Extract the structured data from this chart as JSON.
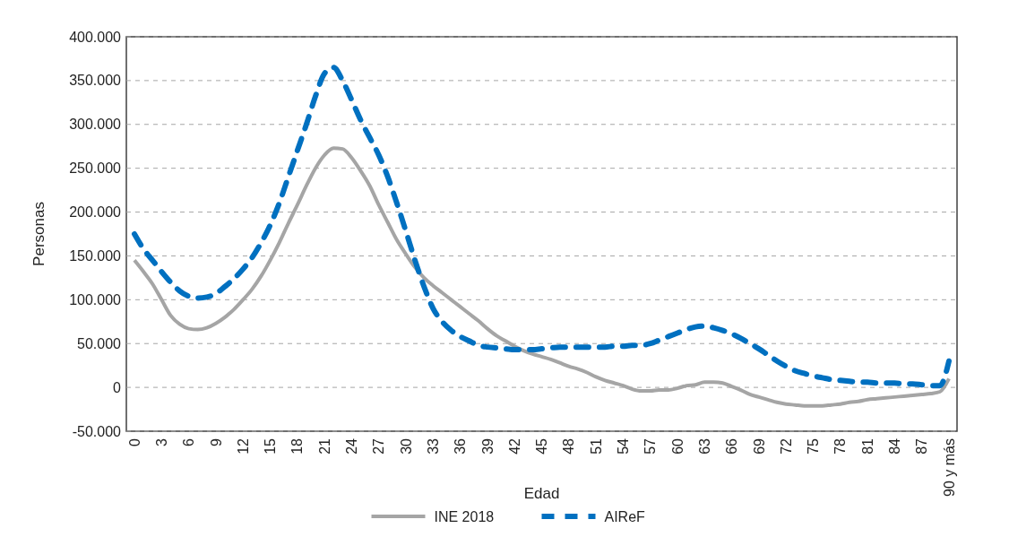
{
  "chart_data": {
    "type": "line",
    "xlabel": "Edad",
    "ylabel": "Personas",
    "categories": [
      "0",
      null,
      null,
      "3",
      null,
      null,
      "6",
      null,
      null,
      "9",
      null,
      null,
      "12",
      null,
      null,
      "15",
      null,
      null,
      "18",
      null,
      null,
      "21",
      null,
      null,
      "24",
      null,
      null,
      "27",
      null,
      null,
      "30",
      null,
      null,
      "33",
      null,
      null,
      "36",
      null,
      null,
      "39",
      null,
      null,
      "42",
      null,
      null,
      "45",
      null,
      null,
      "48",
      null,
      null,
      "51",
      null,
      null,
      "54",
      null,
      null,
      "57",
      null,
      null,
      "60",
      null,
      null,
      "63",
      null,
      null,
      "66",
      null,
      null,
      "69",
      null,
      null,
      "72",
      null,
      null,
      "75",
      null,
      null,
      "78",
      null,
      null,
      "81",
      null,
      null,
      "84",
      null,
      null,
      "87",
      null,
      null,
      "90 y más"
    ],
    "series": [
      {
        "name": "INE 2018",
        "color": "#a5a5a5",
        "line_style": "solid",
        "values": [
          145000,
          132000,
          118000,
          100000,
          82000,
          72000,
          67000,
          66000,
          68000,
          73000,
          80000,
          89000,
          100000,
          112000,
          127000,
          145000,
          165000,
          187000,
          208000,
          230000,
          250000,
          265000,
          273000,
          272000,
          262000,
          247000,
          230000,
          208000,
          188000,
          168000,
          152000,
          137000,
          125000,
          116000,
          108000,
          100000,
          92000,
          84000,
          76000,
          67000,
          59000,
          53000,
          47000,
          42000,
          38000,
          35000,
          32000,
          28000,
          24000,
          21000,
          17000,
          12000,
          8000,
          5000,
          2000,
          -2000,
          -4000,
          -4000,
          -3000,
          -3000,
          -1000,
          2000,
          3000,
          6000,
          6000,
          5000,
          1000,
          -3000,
          -8000,
          -11000,
          -14000,
          -17000,
          -19000,
          -20000,
          -21000,
          -21000,
          -21000,
          -20000,
          -19000,
          -17000,
          -16000,
          -14000,
          -13000,
          -12000,
          -11000,
          -10000,
          -9000,
          -8000,
          -7000,
          -5000,
          10000
        ]
      },
      {
        "name": "AIReF",
        "color": "#0070c0",
        "line_style": "dashed",
        "values": [
          175000,
          158000,
          145000,
          132000,
          120000,
          110000,
          104000,
          102000,
          103000,
          107000,
          115000,
          124000,
          135000,
          148000,
          165000,
          185000,
          210000,
          240000,
          270000,
          300000,
          332000,
          358000,
          365000,
          350000,
          328000,
          305000,
          285000,
          265000,
          240000,
          210000,
          178000,
          145000,
          115000,
          90000,
          75000,
          65000,
          58000,
          53000,
          48000,
          46000,
          45000,
          44000,
          43000,
          43000,
          43000,
          44000,
          45000,
          46000,
          46000,
          46000,
          46000,
          46000,
          46000,
          47000,
          47000,
          48000,
          48000,
          50000,
          54000,
          58000,
          62000,
          66000,
          69000,
          70000,
          68000,
          65000,
          61000,
          56000,
          50000,
          44000,
          37000,
          30000,
          24000,
          19000,
          16000,
          13000,
          11000,
          9000,
          8000,
          7000,
          6000,
          6000,
          5000,
          5000,
          5000,
          4000,
          4000,
          3000,
          2000,
          2000,
          30000
        ]
      }
    ],
    "ylim": [
      -50000,
      400000
    ],
    "yticks": [
      {
        "value": -50000,
        "label": "-50.000"
      },
      0,
      {
        "value": 50000,
        "label": "50.000"
      },
      {
        "value": 100000,
        "label": "100.000"
      },
      {
        "value": 150000,
        "label": "150.000"
      },
      {
        "value": 200000,
        "label": "200.000"
      },
      {
        "value": 250000,
        "label": "250.000"
      },
      {
        "value": 300000,
        "label": "300.000"
      },
      {
        "value": 350000,
        "label": "350.000"
      },
      {
        "value": 400000,
        "label": "400.000"
      }
    ],
    "grid": "y",
    "legend": "bottom",
    "marker": "none"
  }
}
